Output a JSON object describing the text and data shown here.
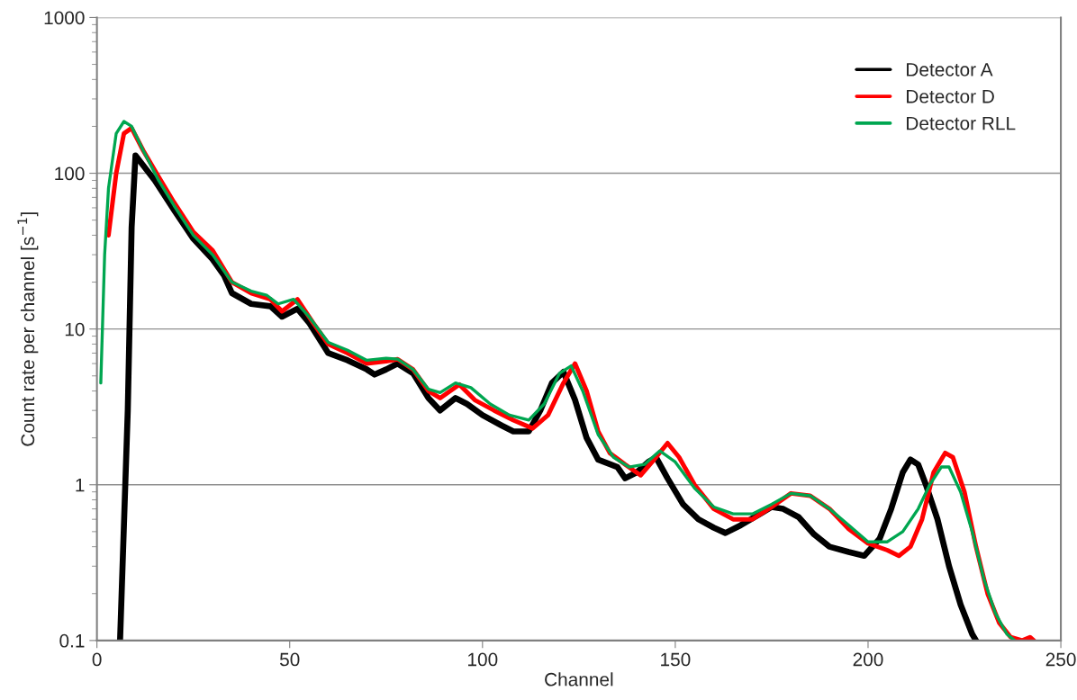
{
  "chart_data": {
    "type": "line",
    "xlabel": "Channel",
    "ylabel": "Count rate per channel [s$^{−1}$]",
    "log": "y",
    "xlim": [
      0,
      250
    ],
    "xticks": [
      0,
      50,
      100,
      150,
      200,
      250
    ],
    "ylim": [
      0.1,
      1000
    ],
    "yticks": [
      0.1,
      1,
      10,
      100,
      1000
    ],
    "grid": "y",
    "legend": "top right",
    "marker": "none",
    "line_style": "solid",
    "series": [
      {
        "name": "Detector A",
        "color": "#000000",
        "x": [
          6,
          8,
          9,
          10,
          15,
          20,
          25,
          30,
          33,
          35,
          40,
          45,
          48,
          52,
          55,
          60,
          65,
          70,
          72,
          75,
          78,
          82,
          86,
          89,
          93,
          96,
          100,
          105,
          108,
          112,
          115,
          118,
          121,
          124,
          127,
          130,
          135,
          137,
          140,
          143,
          145,
          148,
          152,
          156,
          160,
          163,
          167,
          172,
          175,
          178,
          182,
          186,
          190,
          195,
          199,
          203,
          206,
          209,
          211,
          213,
          215,
          218,
          221,
          224,
          227,
          228
        ],
        "values": [
          0.1,
          3,
          45,
          130,
          90,
          58,
          38,
          28,
          22,
          17,
          14.5,
          14,
          12,
          13.5,
          11,
          7,
          6.3,
          5.5,
          5.1,
          5.5,
          6,
          5.2,
          3.6,
          3.0,
          3.6,
          3.3,
          2.8,
          2.4,
          2.2,
          2.2,
          3,
          4.5,
          5.3,
          3.5,
          2,
          1.45,
          1.3,
          1.1,
          1.2,
          1.4,
          1.5,
          1.1,
          0.75,
          0.6,
          0.53,
          0.49,
          0.55,
          0.65,
          0.72,
          0.7,
          0.62,
          0.48,
          0.4,
          0.37,
          0.35,
          0.45,
          0.7,
          1.2,
          1.45,
          1.35,
          1.0,
          0.6,
          0.3,
          0.17,
          0.11,
          0.1
        ]
      },
      {
        "name": "Detector D",
        "color": "#ff0000",
        "x": [
          3,
          5,
          7,
          9,
          12,
          16,
          20,
          25,
          30,
          35,
          40,
          45,
          48,
          52,
          56,
          60,
          65,
          70,
          75,
          78,
          82,
          86,
          89,
          94,
          98,
          103,
          108,
          113,
          117,
          121,
          124,
          127,
          130,
          133,
          137,
          141,
          144,
          148,
          151,
          155,
          160,
          165,
          170,
          175,
          180,
          185,
          190,
          195,
          200,
          205,
          208,
          211,
          214,
          217,
          220,
          222,
          225,
          228,
          231,
          234,
          237,
          240,
          242,
          243
        ],
        "values": [
          40,
          100,
          180,
          195,
          140,
          95,
          65,
          42,
          32,
          20,
          17,
          15.5,
          13,
          15.5,
          11,
          8,
          7,
          6,
          6.2,
          6.4,
          5.5,
          4,
          3.6,
          4.4,
          3.5,
          3.0,
          2.6,
          2.3,
          2.8,
          4.5,
          6,
          4,
          2.2,
          1.6,
          1.35,
          1.15,
          1.4,
          1.85,
          1.5,
          1.0,
          0.7,
          0.6,
          0.6,
          0.72,
          0.88,
          0.85,
          0.7,
          0.52,
          0.42,
          0.38,
          0.35,
          0.4,
          0.6,
          1.2,
          1.6,
          1.5,
          0.9,
          0.4,
          0.2,
          0.13,
          0.105,
          0.1,
          0.105,
          0.1
        ]
      },
      {
        "name": "Detector RLL",
        "color": "#00a650",
        "x": [
          1,
          2,
          3,
          5,
          7,
          9,
          12,
          16,
          20,
          25,
          30,
          35,
          40,
          44,
          47,
          51,
          55,
          60,
          65,
          70,
          75,
          78,
          82,
          86,
          89,
          93,
          97,
          102,
          107,
          112,
          116,
          120,
          123,
          126,
          130,
          134,
          138,
          142,
          146,
          150,
          155,
          160,
          165,
          170,
          175,
          180,
          185,
          190,
          195,
          200,
          205,
          209,
          213,
          216,
          219,
          221,
          224,
          227,
          230,
          233,
          236,
          238
        ],
        "values": [
          4.5,
          30,
          80,
          180,
          215,
          200,
          140,
          90,
          62,
          40,
          30,
          20,
          17.5,
          16.5,
          14.5,
          15.5,
          12,
          8.2,
          7.3,
          6.3,
          6.5,
          6.4,
          5.5,
          4.1,
          3.9,
          4.5,
          4.2,
          3.3,
          2.8,
          2.6,
          3.3,
          5.2,
          5.8,
          4,
          2.1,
          1.5,
          1.3,
          1.35,
          1.65,
          1.4,
          0.95,
          0.72,
          0.65,
          0.65,
          0.75,
          0.88,
          0.85,
          0.7,
          0.55,
          0.43,
          0.43,
          0.5,
          0.7,
          1.0,
          1.3,
          1.3,
          0.9,
          0.5,
          0.25,
          0.15,
          0.11,
          0.1
        ]
      }
    ]
  }
}
